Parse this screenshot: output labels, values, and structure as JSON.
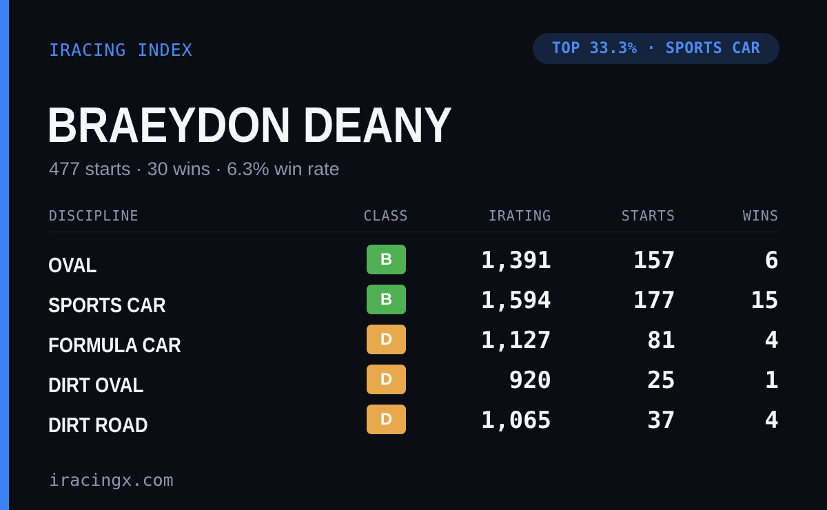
{
  "brand": "IRACING INDEX",
  "rank_pill": "TOP 33.3% · SPORTS CAR",
  "driver": {
    "name": "BRAEYDON DEANY",
    "summary": "477 starts · 30 wins · 6.3% win rate"
  },
  "table": {
    "headers": {
      "discipline": "DISCIPLINE",
      "class": "CLASS",
      "irating": "IRATING",
      "starts": "STARTS",
      "wins": "WINS"
    },
    "rows": [
      {
        "discipline": "OVAL",
        "class": "B",
        "class_color": "#4fb153",
        "irating": "1,391",
        "starts": "157",
        "wins": "6"
      },
      {
        "discipline": "SPORTS CAR",
        "class": "B",
        "class_color": "#4fb153",
        "irating": "1,594",
        "starts": "177",
        "wins": "15"
      },
      {
        "discipline": "FORMULA CAR",
        "class": "D",
        "class_color": "#e8a84c",
        "irating": "1,127",
        "starts": "81",
        "wins": "4"
      },
      {
        "discipline": "DIRT OVAL",
        "class": "D",
        "class_color": "#e8a84c",
        "irating": "920",
        "starts": "25",
        "wins": "1"
      },
      {
        "discipline": "DIRT ROAD",
        "class": "D",
        "class_color": "#e8a84c",
        "irating": "1,065",
        "starts": "37",
        "wins": "4"
      }
    ]
  },
  "footer": "iracingx.com",
  "colors": {
    "background": "#0a0d14",
    "accent": "#3b82f6",
    "pill_background": "#16233d",
    "text_primary": "#f5f7fb",
    "text_muted": "#8d96a8"
  }
}
